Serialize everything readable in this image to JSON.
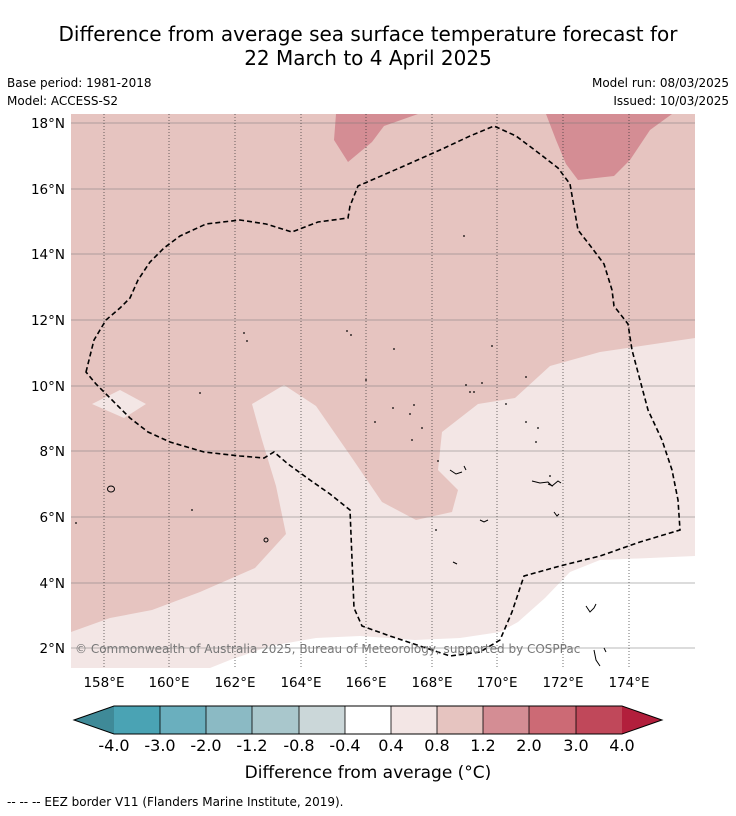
{
  "title_line1": "Difference from average sea surface temperature forecast for",
  "title_line2": "22 March to 4 April 2025",
  "base_period": "Base period: 1981-2018",
  "model": "Model: ACCESS-S2",
  "model_run": "Model run: 08/03/2025",
  "issued": "Issued: 10/03/2025",
  "copyright": "© Commonwealth of Australia 2025, Bureau of Meteorology, supported by COSPPac",
  "lat_labels": [
    "18°N",
    "16°N",
    "14°N",
    "12°N",
    "10°N",
    "8°N",
    "6°N",
    "4°N",
    "2°N"
  ],
  "lon_labels": [
    "158°E",
    "160°E",
    "162°E",
    "164°E",
    "166°E",
    "168°E",
    "170°E",
    "172°E",
    "174°E"
  ],
  "colorbar": {
    "label": "Difference from average (°C)",
    "ticks": [
      "-4.0",
      "-3.0",
      "-2.0",
      "-1.2",
      "-0.8",
      "-0.4",
      "0.4",
      "0.8",
      "1.2",
      "2.0",
      "3.0",
      "4.0"
    ],
    "colors": [
      "#3f8a98",
      "#4aa3b4",
      "#6aafbe",
      "#8bbac4",
      "#a9c7cc",
      "#cbd7d9",
      "#ffffff",
      "#f3e6e5",
      "#e6c4c0",
      "#d48d94",
      "#cc6a75",
      "#c0485a",
      "#b21f3c"
    ]
  },
  "legend_footer": "-- -- -- EEZ border V11 (Flanders Marine Institute, 2019)."
}
